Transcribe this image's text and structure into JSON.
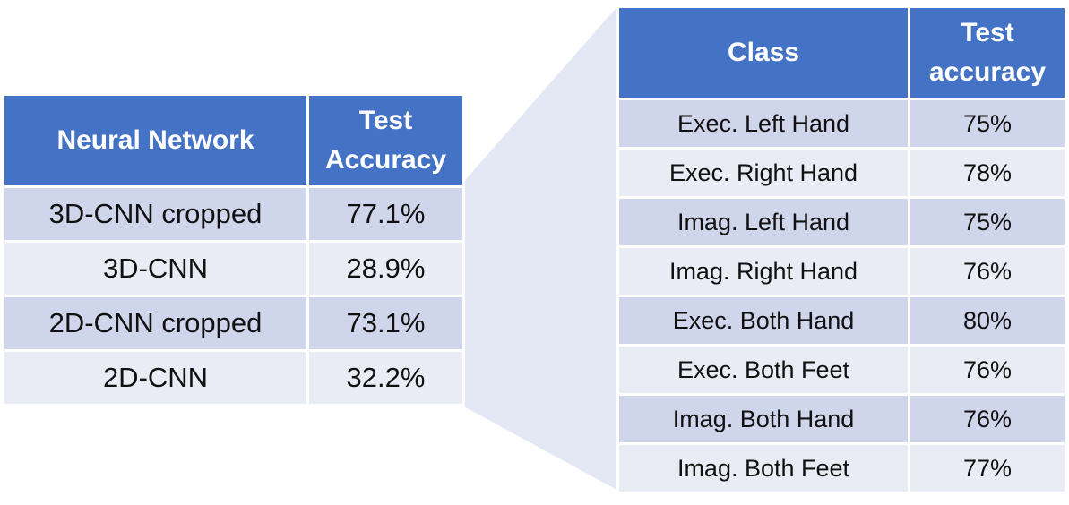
{
  "left_table": {
    "headers": [
      "Neural Network",
      "Test Accuracy"
    ],
    "rows": [
      [
        "3D-CNN cropped",
        "77.1%"
      ],
      [
        "3D-CNN",
        "28.9%"
      ],
      [
        "2D-CNN cropped",
        "73.1%"
      ],
      [
        "2D-CNN",
        "32.2%"
      ]
    ]
  },
  "right_table": {
    "headers": [
      "Class",
      "Test accuracy"
    ],
    "rows": [
      [
        "Exec. Left Hand",
        "75%"
      ],
      [
        "Exec. Right Hand",
        "78%"
      ],
      [
        "Imag. Left Hand",
        "75%"
      ],
      [
        "Imag. Right Hand",
        "76%"
      ],
      [
        "Exec. Both Hand",
        "80%"
      ],
      [
        "Exec. Both Feet",
        "76%"
      ],
      [
        "Imag. Both Hand",
        "76%"
      ],
      [
        "Imag. Both Feet",
        "77%"
      ]
    ]
  },
  "colors": {
    "header": "#4472c4",
    "row_dark": "#cfd5ea",
    "row_light": "#e9ebf5",
    "connector": "#e3e8f4"
  }
}
